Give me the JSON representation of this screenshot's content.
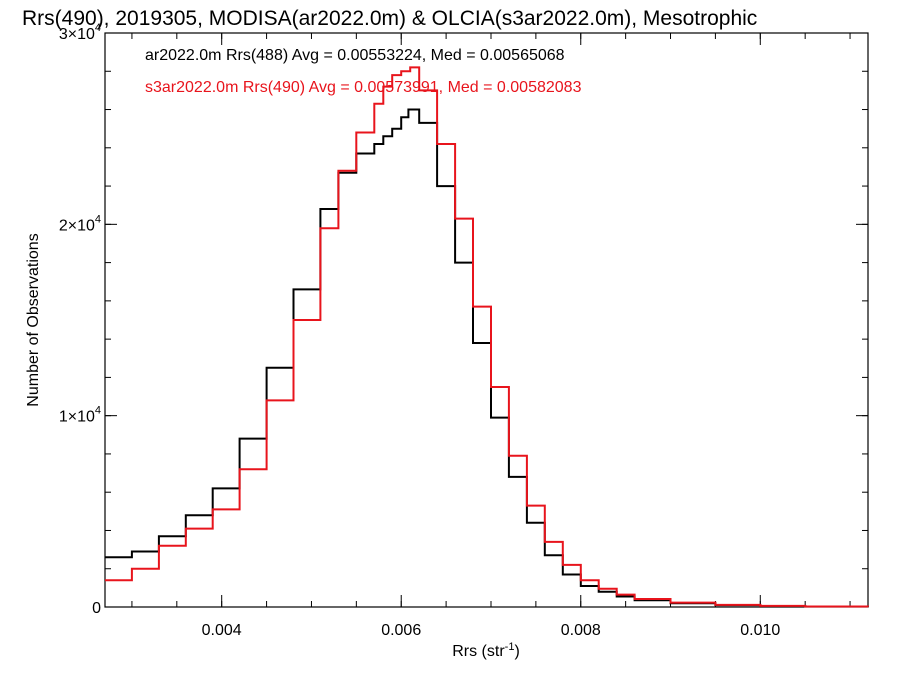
{
  "chart_data": {
    "type": "line",
    "title": "Rrs(490), 2019305, MODISA(ar2022.0m) & OLCIA(s3ar2022.0m), Mesotrophic",
    "xlabel": "Rrs (str",
    "xlabel_sup": "-1",
    "xlabel_end": ")",
    "ylabel": "Number of Observations",
    "xlim": [
      0.0027,
      0.0112
    ],
    "ylim": [
      0,
      30000
    ],
    "x_ticks": [
      {
        "value": 0.004,
        "label": "0.004"
      },
      {
        "value": 0.006,
        "label": "0.006"
      },
      {
        "value": 0.008,
        "label": "0.008"
      },
      {
        "value": 0.01,
        "label": "0.010"
      }
    ],
    "y_ticks": [
      {
        "value": 0,
        "base": "0",
        "exp": ""
      },
      {
        "value": 10000,
        "base": "1×10",
        "exp": "4"
      },
      {
        "value": 20000,
        "base": "2×10",
        "exp": "4"
      },
      {
        "value": 30000,
        "base": "3×10",
        "exp": "4"
      }
    ],
    "grid": false,
    "series": [
      {
        "name": "ar2022.0m Rrs(488)",
        "color": "#000000",
        "legend_text": "ar2022.0m Rrs(488) Avg = 0.00553224, Med = 0.00565068",
        "x": [
          0.0027,
          0.003,
          0.0033,
          0.0036,
          0.0039,
          0.0042,
          0.0045,
          0.0048,
          0.0051,
          0.0053,
          0.0055,
          0.0057,
          0.0058,
          0.0059,
          0.006,
          0.00608,
          0.0062,
          0.0064,
          0.0066,
          0.0068,
          0.007,
          0.0072,
          0.0074,
          0.0076,
          0.0078,
          0.008,
          0.0082,
          0.0084,
          0.0086,
          0.009,
          0.0095,
          0.01,
          0.0105,
          0.0112
        ],
        "values": [
          2600,
          2900,
          3700,
          4800,
          6200,
          8800,
          12500,
          16600,
          20800,
          22700,
          23700,
          24200,
          24600,
          25000,
          25600,
          26000,
          25300,
          22000,
          18000,
          13800,
          9900,
          6800,
          4400,
          2700,
          1700,
          1100,
          800,
          550,
          350,
          200,
          100,
          50,
          25,
          10
        ]
      },
      {
        "name": "s3ar2022.0m Rrs(490)",
        "color": "#e8141c",
        "legend_text": "s3ar2022.0m Rrs(490) Avg = 0.00573991, Med = 0.00582083",
        "x": [
          0.0027,
          0.003,
          0.0033,
          0.0036,
          0.0039,
          0.0042,
          0.0045,
          0.0048,
          0.0051,
          0.0053,
          0.0055,
          0.0057,
          0.0058,
          0.0059,
          0.006,
          0.0061,
          0.0062,
          0.0064,
          0.0066,
          0.0068,
          0.007,
          0.0072,
          0.0074,
          0.0076,
          0.0078,
          0.008,
          0.0082,
          0.0084,
          0.0086,
          0.009,
          0.0095,
          0.01,
          0.0105,
          0.0112
        ],
        "values": [
          1400,
          2000,
          3200,
          4100,
          5100,
          7200,
          10800,
          15000,
          19800,
          22800,
          24800,
          26300,
          27200,
          27800,
          28000,
          28200,
          27000,
          24200,
          20300,
          15700,
          11500,
          7900,
          5300,
          3400,
          2200,
          1400,
          950,
          650,
          420,
          230,
          110,
          55,
          28,
          12
        ]
      }
    ]
  }
}
